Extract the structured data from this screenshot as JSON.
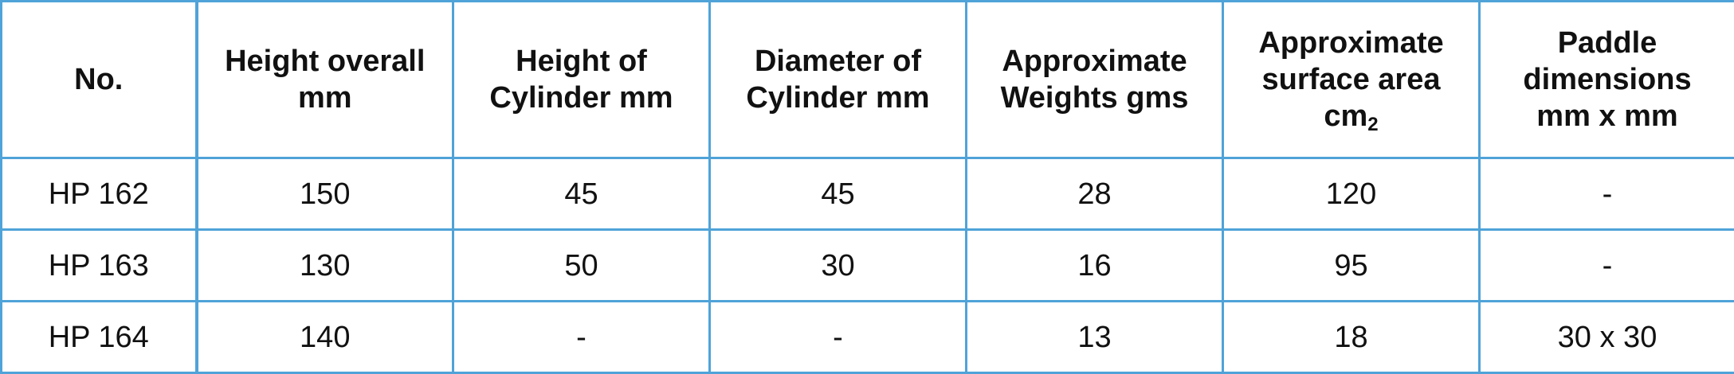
{
  "table": {
    "headers": [
      {
        "lines": [
          "No."
        ]
      },
      {
        "lines": [
          "Height overall",
          "mm"
        ]
      },
      {
        "lines": [
          "Height of",
          "Cylinder mm"
        ]
      },
      {
        "lines": [
          "Diameter of",
          "Cylinder mm"
        ]
      },
      {
        "lines": [
          "Approximate",
          "Weights gms"
        ]
      },
      {
        "lines": [
          "Approximate",
          "surface area",
          "cm"
        ],
        "subscript": "2"
      },
      {
        "lines": [
          "Paddle",
          "dimensions",
          "mm x mm"
        ]
      }
    ],
    "rows": [
      [
        "HP 162",
        "150",
        "45",
        "45",
        "28",
        "120",
        "-"
      ],
      [
        "HP 163",
        "130",
        "50",
        "30",
        "16",
        "95",
        "-"
      ],
      [
        "HP 164",
        "140",
        "-",
        "-",
        "13",
        "18",
        "30 x 30"
      ]
    ]
  },
  "colors": {
    "border": "#4fa3d8",
    "text": "#111111",
    "background": "#ffffff"
  }
}
